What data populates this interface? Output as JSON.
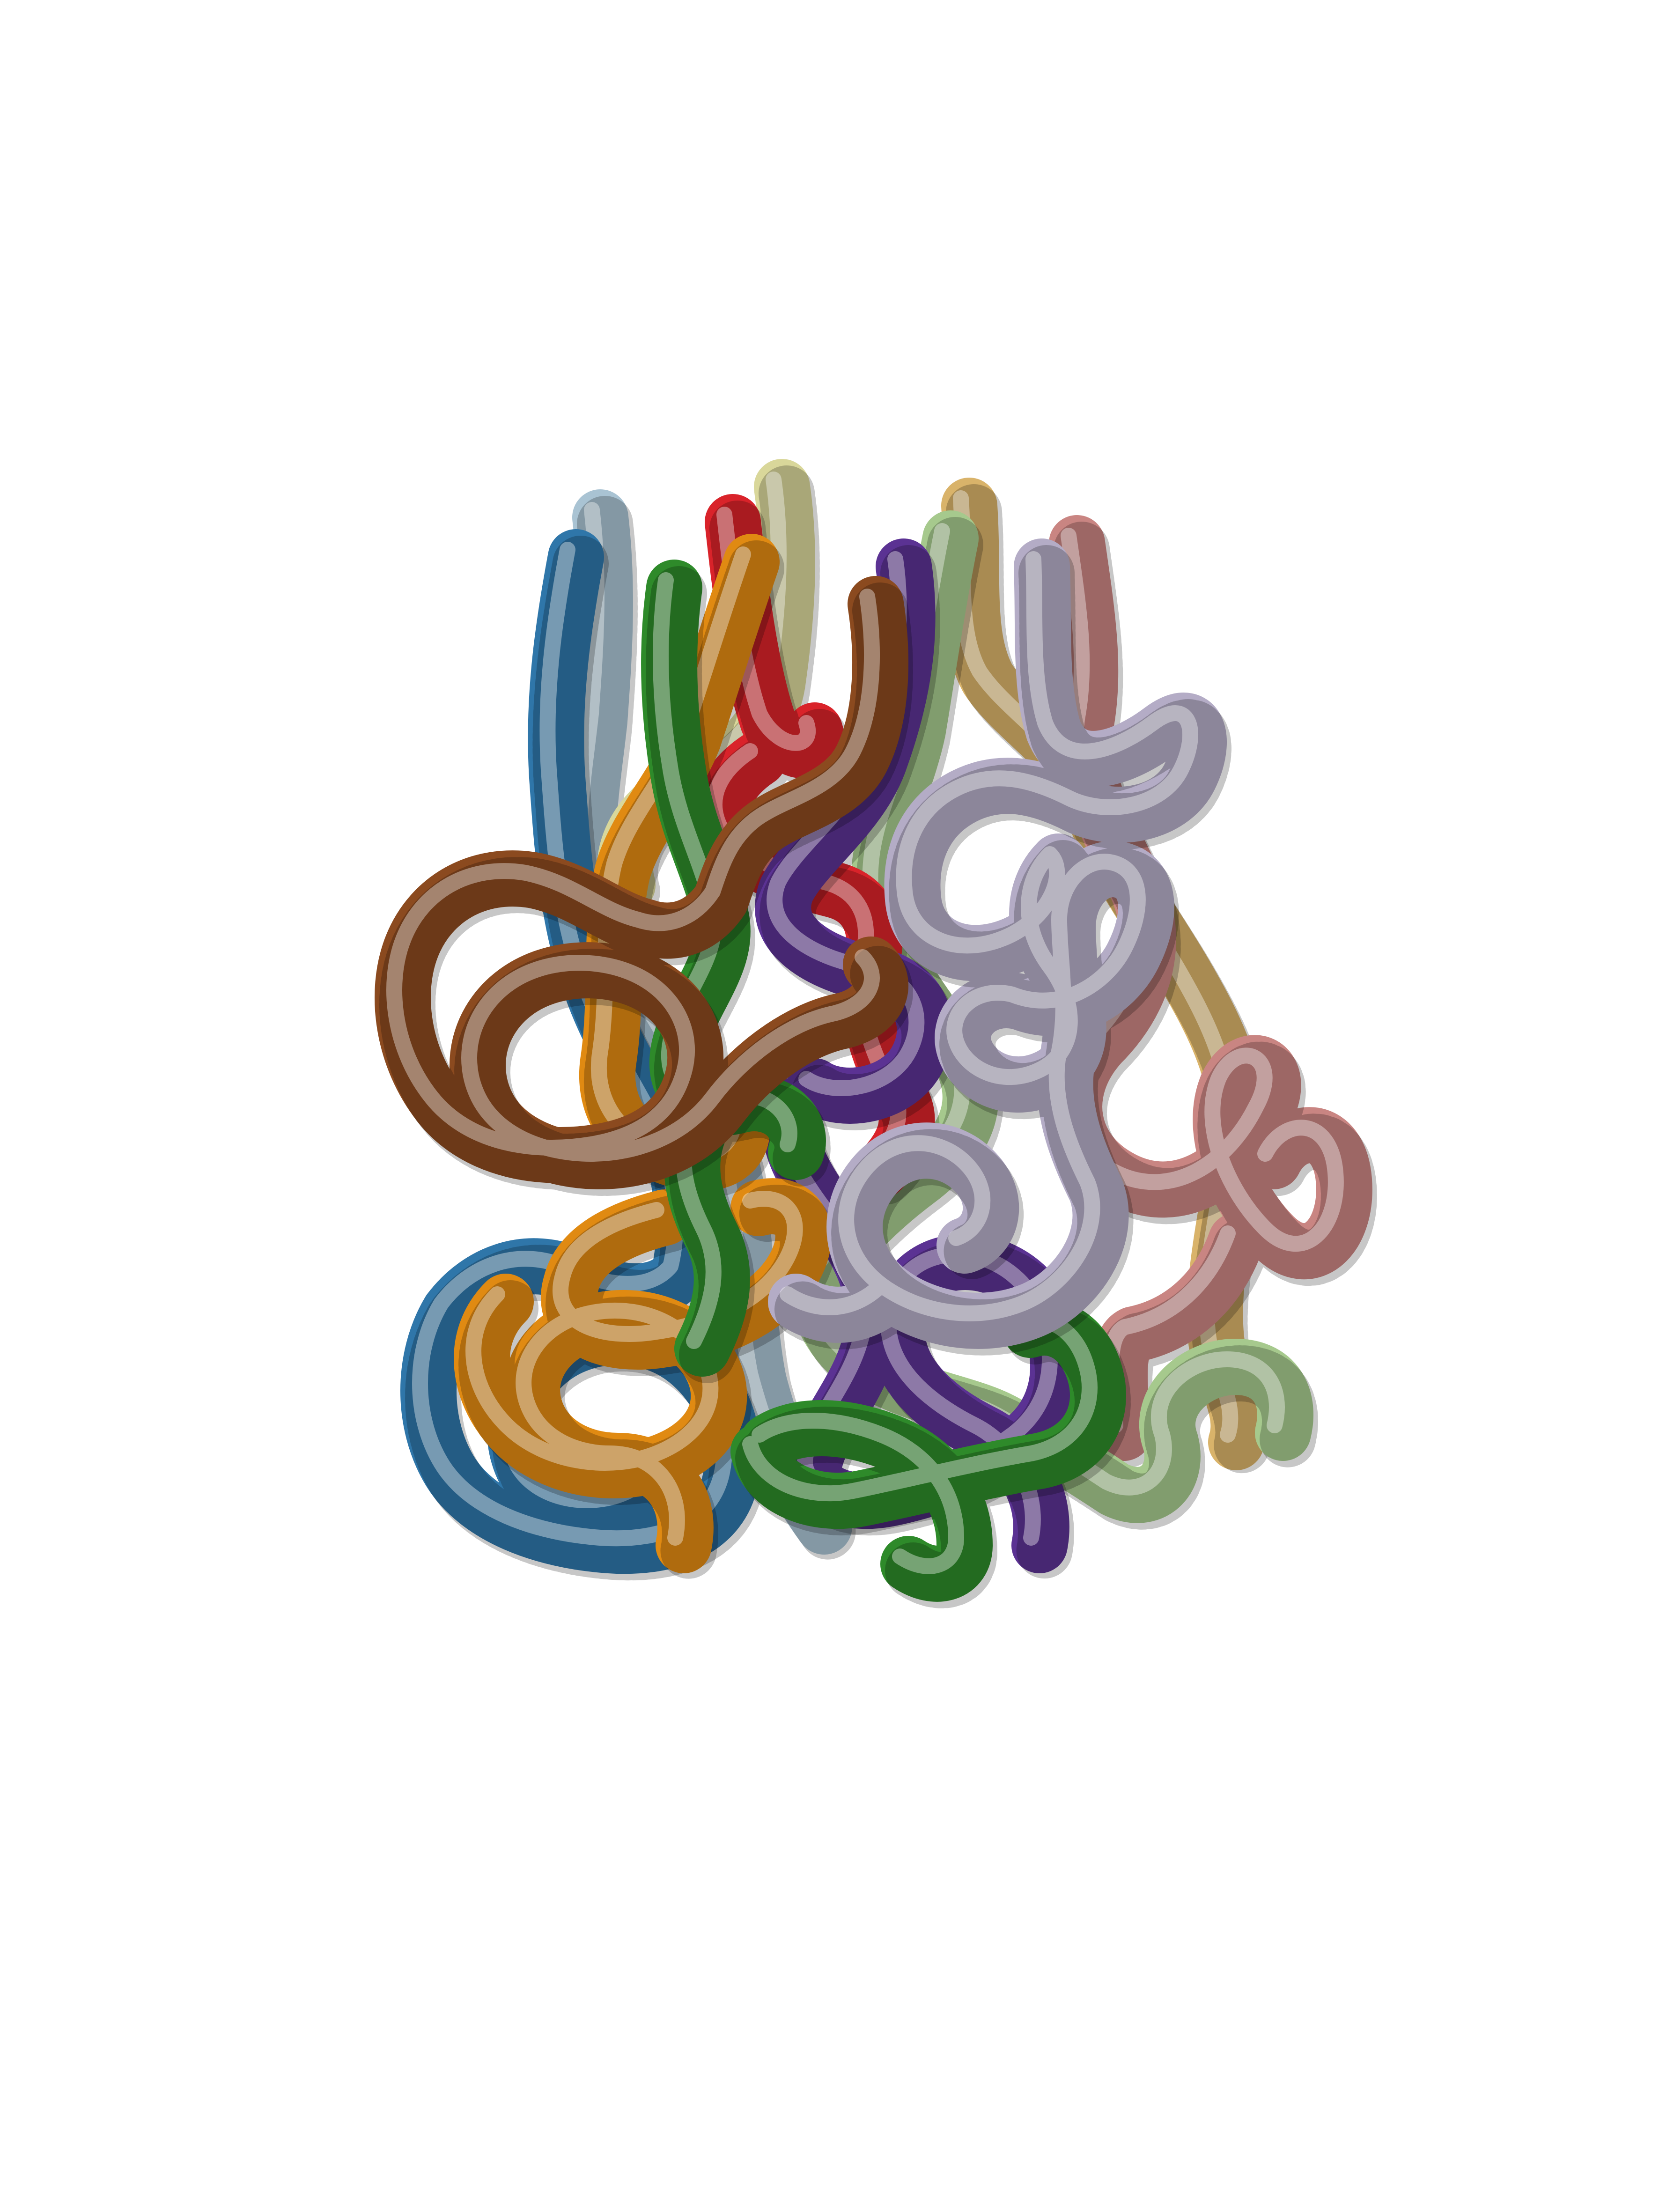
{
  "scene": {
    "background": "#ffffff"
  },
  "strands": [
    {
      "name": "light-blue-strand",
      "color": "#a9c3d3"
    },
    {
      "name": "pale-yellow-strand",
      "color": "#d9d79a"
    },
    {
      "name": "tan-strand",
      "color": "#d9b36a"
    },
    {
      "name": "pink-strand",
      "color": "#c98582"
    },
    {
      "name": "light-green-strand",
      "color": "#a6c98d"
    },
    {
      "name": "red-strand",
      "color": "#d9232a"
    },
    {
      "name": "purple-strand",
      "color": "#5b3293"
    },
    {
      "name": "blue-strand",
      "color": "#2f76a9"
    },
    {
      "name": "orange-strand",
      "color": "#e08a12"
    },
    {
      "name": "green-strand",
      "color": "#2e8a2a"
    },
    {
      "name": "brown-strand",
      "color": "#8b4a1f"
    },
    {
      "name": "lavender-strand",
      "color": "#b4acc6"
    }
  ]
}
